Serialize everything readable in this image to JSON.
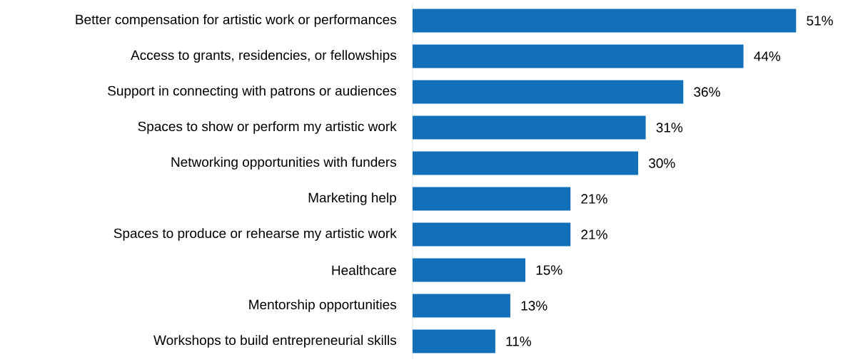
{
  "chart_data": {
    "type": "bar",
    "orientation": "horizontal",
    "color": "#1170b8",
    "categories": [
      "Better compensation for artistic work or performances",
      "Access to grants, residencies, or fellowships",
      "Support in connecting with patrons or audiences",
      "Spaces to show or perform my artistic work",
      "Networking opportunities with funders",
      "Marketing help",
      "Spaces to produce or rehearse my artistic work",
      "Healthcare",
      "Mentorship opportunities",
      "Workshops to build entrepreneurial skills"
    ],
    "values": [
      51,
      44,
      36,
      31,
      30,
      21,
      21,
      15,
      13,
      11
    ],
    "value_labels": [
      "51%",
      "44%",
      "36%",
      "31%",
      "30%",
      "21%",
      "21%",
      "15%",
      "13%",
      "11%"
    ]
  }
}
